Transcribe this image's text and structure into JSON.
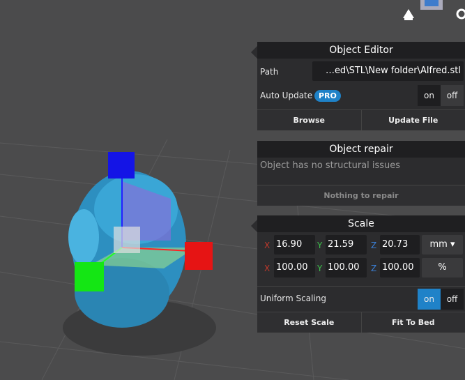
{
  "object_editor": {
    "title": "Object Editor",
    "path_label": "Path",
    "path_value": "…ed\\STL\\New folder\\Alfred.stl",
    "auto_update_label": "Auto Update",
    "pro_badge": "PRO",
    "toggle_on": "on",
    "toggle_off": "off",
    "browse": "Browse",
    "update_file": "Update File"
  },
  "object_repair": {
    "title": "Object repair",
    "status": "Object has no structural issues",
    "button": "Nothing to repair"
  },
  "scale": {
    "title": "Scale",
    "size_row": {
      "x_label": "X",
      "x": "16.90",
      "y_label": "Y",
      "y": "21.59",
      "z_label": "Z",
      "z": "20.73",
      "unit": "mm"
    },
    "percent_row": {
      "x_label": "X",
      "x": "100.00",
      "y_label": "Y",
      "y": "100.00",
      "z_label": "Z",
      "z": "100.00",
      "unit": "%"
    },
    "uniform_label": "Uniform Scaling",
    "toggle_on": "on",
    "toggle_off": "off",
    "reset": "Reset Scale",
    "fit": "Fit To Bed"
  }
}
